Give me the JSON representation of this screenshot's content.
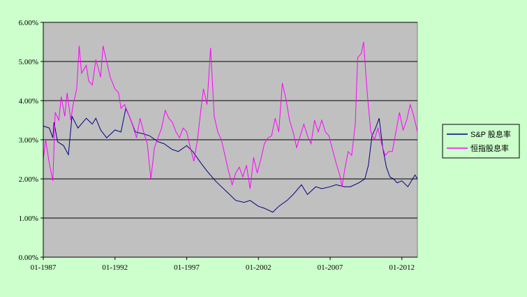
{
  "chart_data": {
    "type": "line",
    "title": "",
    "xlabel": "",
    "ylabel": "",
    "ylim": [
      0,
      6
    ],
    "y_ticks": [
      "0.00%",
      "1.00%",
      "2.00%",
      "3.00%",
      "4.00%",
      "5.00%",
      "6.00%"
    ],
    "x_ticks": [
      "01-1987",
      "01-1992",
      "01-1997",
      "01-2002",
      "01-2007",
      "01-2012"
    ],
    "x_range": [
      "1987-01",
      "2013-02"
    ],
    "grid": "horizontal",
    "legend_position": "right",
    "plot_background": "#c0c0c0",
    "series": [
      {
        "name": "S&P 股息率",
        "color": "#000080",
        "points": [
          [
            "1987-01",
            3.35
          ],
          [
            "1987-06",
            3.3
          ],
          [
            "1987-09",
            3.05
          ],
          [
            "1987-10",
            3.45
          ],
          [
            "1988-01",
            2.95
          ],
          [
            "1988-06",
            2.85
          ],
          [
            "1988-10",
            2.62
          ],
          [
            "1989-01",
            3.6
          ],
          [
            "1989-06",
            3.3
          ],
          [
            "1990-01",
            3.55
          ],
          [
            "1990-06",
            3.4
          ],
          [
            "1990-09",
            3.55
          ],
          [
            "1991-01",
            3.25
          ],
          [
            "1991-06",
            3.05
          ],
          [
            "1992-01",
            3.25
          ],
          [
            "1992-06",
            3.2
          ],
          [
            "1992-10",
            3.8
          ],
          [
            "1993-01",
            3.6
          ],
          [
            "1993-06",
            3.2
          ],
          [
            "1994-01",
            3.15
          ],
          [
            "1994-06",
            3.1
          ],
          [
            "1995-01",
            2.95
          ],
          [
            "1995-06",
            2.9
          ],
          [
            "1996-01",
            2.75
          ],
          [
            "1996-06",
            2.7
          ],
          [
            "1997-01",
            2.85
          ],
          [
            "1997-06",
            2.7
          ],
          [
            "1998-01",
            2.4
          ],
          [
            "1998-06",
            2.2
          ],
          [
            "1999-01",
            1.95
          ],
          [
            "1999-06",
            1.8
          ],
          [
            "2000-01",
            1.6
          ],
          [
            "2000-06",
            1.45
          ],
          [
            "2001-01",
            1.4
          ],
          [
            "2001-06",
            1.45
          ],
          [
            "2002-01",
            1.3
          ],
          [
            "2002-06",
            1.25
          ],
          [
            "2003-01",
            1.15
          ],
          [
            "2003-06",
            1.3
          ],
          [
            "2004-01",
            1.45
          ],
          [
            "2004-06",
            1.6
          ],
          [
            "2005-01",
            1.85
          ],
          [
            "2005-06",
            1.6
          ],
          [
            "2006-01",
            1.8
          ],
          [
            "2006-06",
            1.75
          ],
          [
            "2007-01",
            1.8
          ],
          [
            "2007-06",
            1.85
          ],
          [
            "2008-01",
            1.8
          ],
          [
            "2008-06",
            1.8
          ],
          [
            "2009-01",
            1.9
          ],
          [
            "2009-06",
            2.0
          ],
          [
            "2009-09",
            2.35
          ],
          [
            "2009-12",
            3.1
          ],
          [
            "2010-03",
            3.3
          ],
          [
            "2010-06",
            3.55
          ],
          [
            "2010-09",
            2.8
          ],
          [
            "2010-12",
            2.3
          ],
          [
            "2011-03",
            2.05
          ],
          [
            "2011-06",
            2.0
          ],
          [
            "2011-09",
            1.9
          ],
          [
            "2012-01",
            1.95
          ],
          [
            "2012-06",
            1.8
          ],
          [
            "2012-12",
            2.1
          ],
          [
            "2013-02",
            2.0
          ]
        ]
      },
      {
        "name": "恒指股息率",
        "color": "#ff00ff",
        "points": [
          [
            "1987-01",
            2.5
          ],
          [
            "1987-03",
            3.0
          ],
          [
            "1987-06",
            2.4
          ],
          [
            "1987-09",
            1.95
          ],
          [
            "1987-11",
            3.7
          ],
          [
            "1988-02",
            3.5
          ],
          [
            "1988-04",
            4.1
          ],
          [
            "1988-07",
            3.6
          ],
          [
            "1988-09",
            4.2
          ],
          [
            "1988-12",
            3.5
          ],
          [
            "1989-02",
            3.9
          ],
          [
            "1989-05",
            4.3
          ],
          [
            "1989-07",
            5.4
          ],
          [
            "1989-09",
            4.7
          ],
          [
            "1990-01",
            4.9
          ],
          [
            "1990-03",
            4.5
          ],
          [
            "1990-06",
            4.4
          ],
          [
            "1990-09",
            5.05
          ],
          [
            "1991-01",
            4.6
          ],
          [
            "1991-03",
            5.4
          ],
          [
            "1991-06",
            5.0
          ],
          [
            "1991-09",
            4.6
          ],
          [
            "1992-01",
            4.3
          ],
          [
            "1992-04",
            4.2
          ],
          [
            "1992-06",
            3.8
          ],
          [
            "1992-09",
            3.9
          ],
          [
            "1993-01",
            3.6
          ],
          [
            "1993-04",
            3.35
          ],
          [
            "1993-07",
            3.05
          ],
          [
            "1993-10",
            3.55
          ],
          [
            "1994-01",
            3.2
          ],
          [
            "1994-04",
            2.9
          ],
          [
            "1994-07",
            2.0
          ],
          [
            "1994-10",
            2.8
          ],
          [
            "1995-01",
            3.05
          ],
          [
            "1995-04",
            3.3
          ],
          [
            "1995-07",
            3.75
          ],
          [
            "1995-10",
            3.55
          ],
          [
            "1996-01",
            3.45
          ],
          [
            "1996-04",
            3.2
          ],
          [
            "1996-07",
            3.05
          ],
          [
            "1996-10",
            3.3
          ],
          [
            "1997-01",
            3.2
          ],
          [
            "1997-04",
            2.8
          ],
          [
            "1997-07",
            2.45
          ],
          [
            "1997-10",
            3.0
          ],
          [
            "1998-01",
            3.8
          ],
          [
            "1998-03",
            4.3
          ],
          [
            "1998-06",
            3.9
          ],
          [
            "1998-09",
            5.35
          ],
          [
            "1998-12",
            3.6
          ],
          [
            "1999-03",
            3.2
          ],
          [
            "1999-06",
            3.0
          ],
          [
            "1999-09",
            2.6
          ],
          [
            "1999-12",
            2.2
          ],
          [
            "2000-03",
            1.85
          ],
          [
            "2000-06",
            2.15
          ],
          [
            "2000-09",
            2.3
          ],
          [
            "2000-12",
            2.05
          ],
          [
            "2001-03",
            2.35
          ],
          [
            "2001-06",
            1.75
          ],
          [
            "2001-09",
            2.55
          ],
          [
            "2001-12",
            2.15
          ],
          [
            "2002-03",
            2.5
          ],
          [
            "2002-06",
            2.9
          ],
          [
            "2002-09",
            3.05
          ],
          [
            "2002-12",
            3.1
          ],
          [
            "2003-03",
            3.55
          ],
          [
            "2003-06",
            3.2
          ],
          [
            "2003-09",
            4.45
          ],
          [
            "2003-12",
            4.05
          ],
          [
            "2004-03",
            3.5
          ],
          [
            "2004-06",
            3.2
          ],
          [
            "2004-09",
            2.8
          ],
          [
            "2004-12",
            3.1
          ],
          [
            "2005-03",
            3.4
          ],
          [
            "2005-06",
            3.1
          ],
          [
            "2005-09",
            2.9
          ],
          [
            "2005-12",
            3.5
          ],
          [
            "2006-03",
            3.2
          ],
          [
            "2006-06",
            3.5
          ],
          [
            "2006-09",
            3.2
          ],
          [
            "2006-12",
            3.1
          ],
          [
            "2007-03",
            2.75
          ],
          [
            "2007-06",
            2.4
          ],
          [
            "2007-09",
            2.1
          ],
          [
            "2007-11",
            1.8
          ],
          [
            "2008-01",
            2.2
          ],
          [
            "2008-04",
            2.7
          ],
          [
            "2008-07",
            2.6
          ],
          [
            "2008-10",
            3.4
          ],
          [
            "2008-12",
            5.1
          ],
          [
            "2009-03",
            5.2
          ],
          [
            "2009-05",
            5.5
          ],
          [
            "2009-08",
            4.2
          ],
          [
            "2009-11",
            3.2
          ],
          [
            "2010-02",
            3.0
          ],
          [
            "2010-05",
            3.3
          ],
          [
            "2010-08",
            2.9
          ],
          [
            "2010-11",
            2.6
          ],
          [
            "2011-02",
            2.7
          ],
          [
            "2011-05",
            2.7
          ],
          [
            "2011-08",
            3.2
          ],
          [
            "2011-11",
            3.7
          ],
          [
            "2012-02",
            3.25
          ],
          [
            "2012-05",
            3.5
          ],
          [
            "2012-08",
            3.9
          ],
          [
            "2012-11",
            3.6
          ],
          [
            "2013-02",
            3.2
          ]
        ]
      }
    ]
  }
}
